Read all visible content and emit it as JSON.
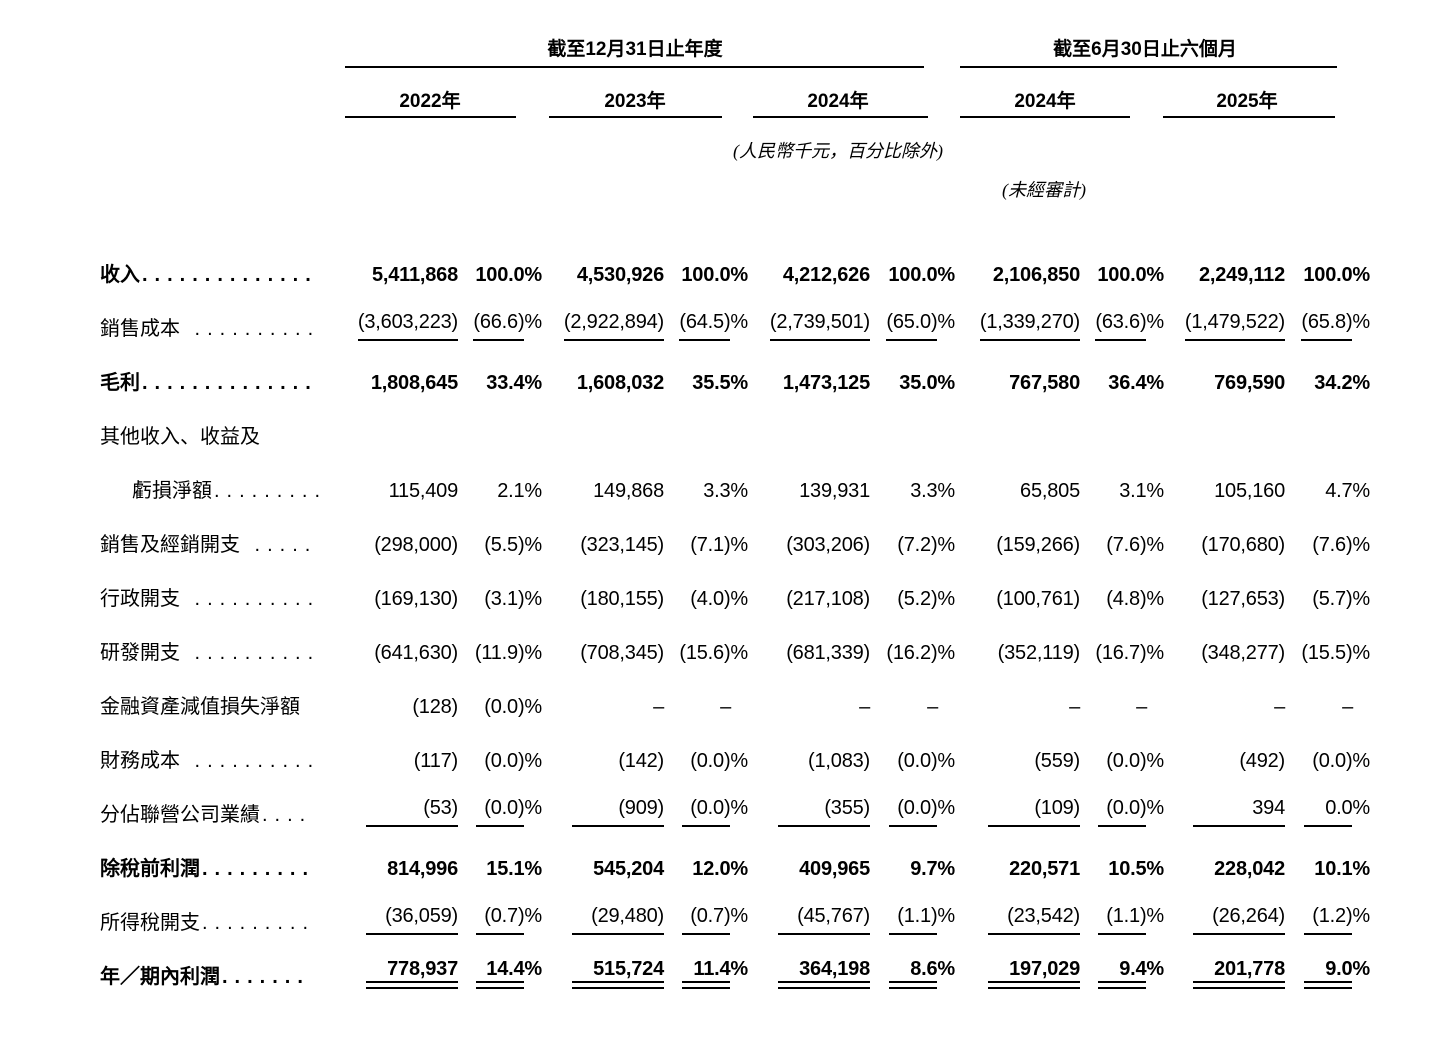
{
  "header": {
    "annual": {
      "title": "截至12月31日止年度",
      "years": [
        "2022年",
        "2023年",
        "2024年"
      ]
    },
    "interim": {
      "title": "截至6月30日止六個月",
      "years": [
        "2024年",
        "2025年"
      ]
    },
    "currency_note": "(人民幣千元，百分比除外)",
    "unaudited_note": "(未經審計)"
  },
  "table": {
    "rows": [
      {
        "label": "收入",
        "dots": "..............",
        "style": "bold",
        "underline": "none",
        "values": [
          "5,411,868",
          "100.0%",
          "4,530,926",
          "100.0%",
          "4,212,626",
          "100.0%",
          "2,106,850",
          "100.0%",
          "2,249,112",
          "100.0%"
        ]
      },
      {
        "label": "銷售成本",
        "dots": " ..........",
        "style": "normal",
        "underline": "single",
        "values": [
          "(3,603,223)",
          "(66.6)%",
          "(2,922,894)",
          "(64.5)%",
          "(2,739,501)",
          "(65.0)%",
          "(1,339,270)",
          "(63.6)%",
          "(1,479,522)",
          "(65.8)%"
        ]
      },
      {
        "label": "毛利",
        "dots": "..............",
        "style": "bold",
        "underline": "none",
        "values": [
          "1,808,645",
          "33.4%",
          "1,608,032",
          "35.5%",
          "1,473,125",
          "35.0%",
          "767,580",
          "36.4%",
          "769,590",
          "34.2%"
        ]
      },
      {
        "label": "其他收入、收益及",
        "dots": "",
        "style": "normal",
        "underline": "none",
        "values": null
      },
      {
        "label": "虧損淨額",
        "dots": ".........",
        "style": "normal",
        "underline": "none",
        "indent": true,
        "values": [
          "115,409",
          "2.1%",
          "149,868",
          "3.3%",
          "139,931",
          "3.3%",
          "65,805",
          "3.1%",
          "105,160",
          "4.7%"
        ]
      },
      {
        "label": "銷售及經銷開支",
        "dots": " .....",
        "style": "normal",
        "underline": "none",
        "values": [
          "(298,000)",
          "(5.5)%",
          "(323,145)",
          "(7.1)%",
          "(303,206)",
          "(7.2)%",
          "(159,266)",
          "(7.6)%",
          "(170,680)",
          "(7.6)%"
        ]
      },
      {
        "label": "行政開支",
        "dots": " ..........",
        "style": "normal",
        "underline": "none",
        "values": [
          "(169,130)",
          "(3.1)%",
          "(180,155)",
          "(4.0)%",
          "(217,108)",
          "(5.2)%",
          "(100,761)",
          "(4.8)%",
          "(127,653)",
          "(5.7)%"
        ]
      },
      {
        "label": "研發開支",
        "dots": " ..........",
        "style": "normal",
        "underline": "none",
        "values": [
          "(641,630)",
          "(11.9)%",
          "(708,345)",
          "(15.6)%",
          "(681,339)",
          "(16.2)%",
          "(352,119)",
          "(16.7)%",
          "(348,277)",
          "(15.5)%"
        ]
      },
      {
        "label": "金融資產減值損失淨額",
        "dots": "",
        "style": "normal",
        "underline": "none",
        "values": [
          "(128)",
          "(0.0)%",
          "–",
          "–",
          "–",
          "–",
          "–",
          "–",
          "–",
          "–"
        ]
      },
      {
        "label": "財務成本",
        "dots": " ..........",
        "style": "normal",
        "underline": "none",
        "values": [
          "(117)",
          "(0.0)%",
          "(142)",
          "(0.0)%",
          "(1,083)",
          "(0.0)%",
          "(559)",
          "(0.0)%",
          "(492)",
          "(0.0)%"
        ]
      },
      {
        "label": "分佔聯營公司業績",
        "dots": "....",
        "style": "normal",
        "underline": "single",
        "values": [
          "(53)",
          "(0.0)%",
          "(909)",
          "(0.0)%",
          "(355)",
          "(0.0)%",
          "(109)",
          "(0.0)%",
          "394",
          "0.0%"
        ]
      },
      {
        "label": "除稅前利潤",
        "dots": ".........",
        "style": "bold",
        "underline": "none",
        "values": [
          "814,996",
          "15.1%",
          "545,204",
          "12.0%",
          "409,965",
          "9.7%",
          "220,571",
          "10.5%",
          "228,042",
          "10.1%"
        ]
      },
      {
        "label": "所得稅開支",
        "dots": ".........",
        "style": "normal",
        "underline": "single",
        "values": [
          "(36,059)",
          "(0.7)%",
          "(29,480)",
          "(0.7)%",
          "(45,767)",
          "(1.1)%",
          "(23,542)",
          "(1.1)%",
          "(26,264)",
          "(1.2)%"
        ]
      },
      {
        "label": "年／期內利潤",
        "dots": ".......",
        "style": "bold",
        "underline": "double",
        "values": [
          "778,937",
          "14.4%",
          "515,724",
          "11.4%",
          "364,198",
          "8.6%",
          "197,029",
          "9.4%",
          "201,778",
          "9.0%"
        ]
      }
    ]
  }
}
